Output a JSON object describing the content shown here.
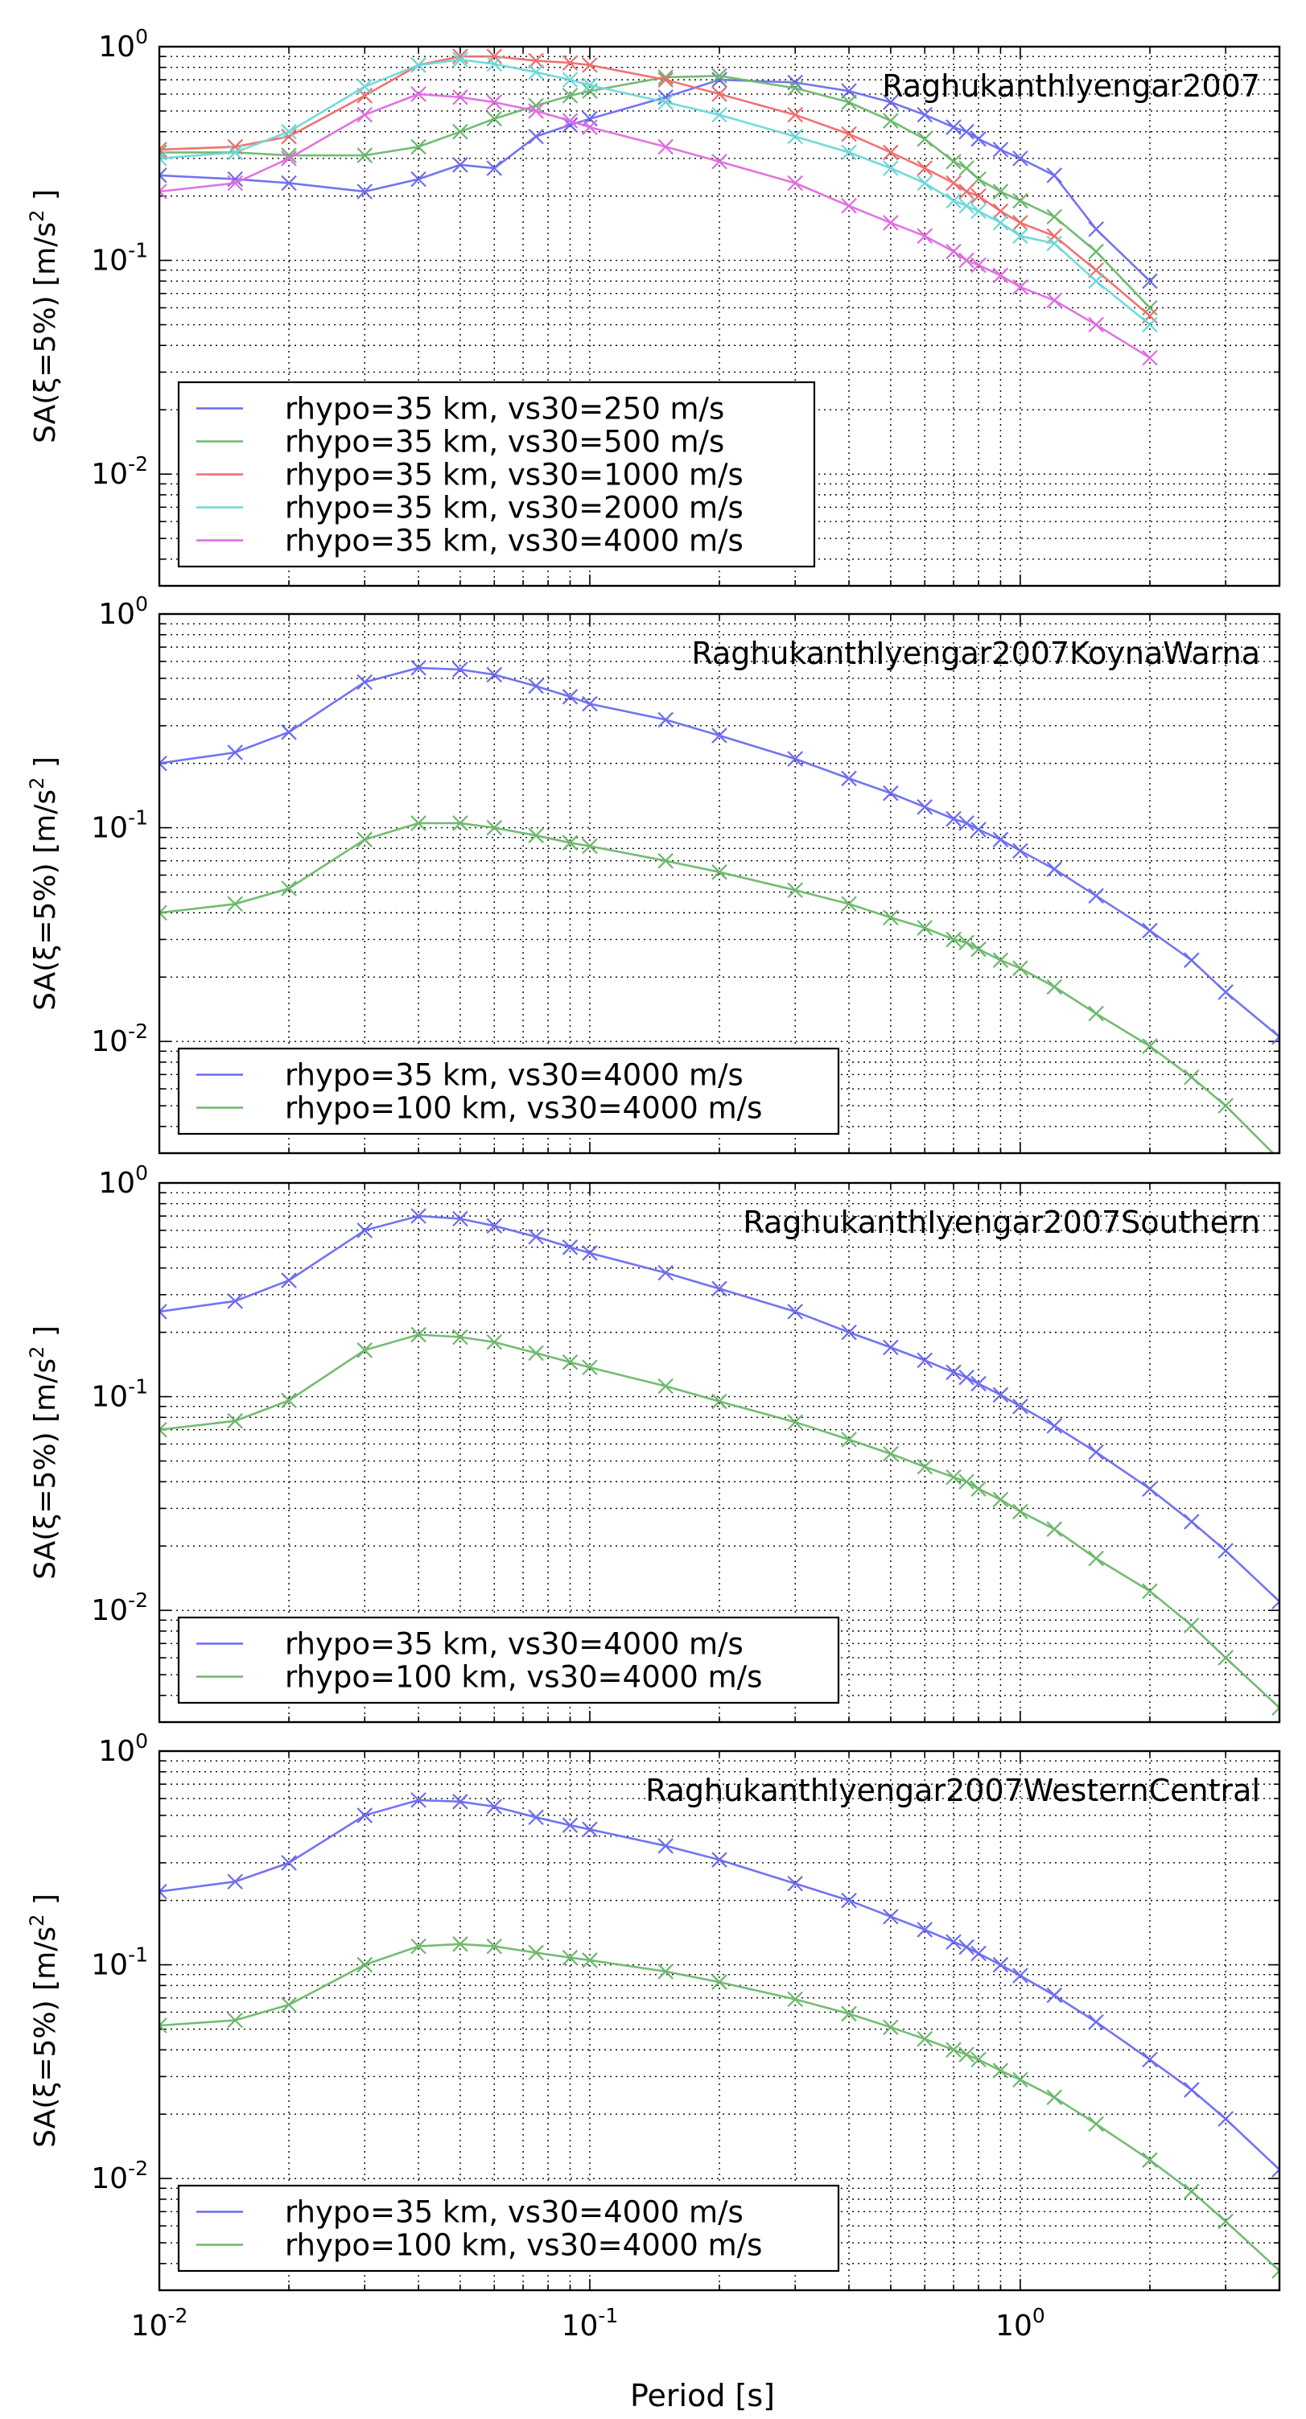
{
  "x_axis": {
    "label": "Period [s]",
    "ticks": [
      {
        "value": 0.01,
        "mant": "10",
        "exp": "-2"
      },
      {
        "value": 0.1,
        "mant": "10",
        "exp": "-1"
      },
      {
        "value": 1,
        "mant": "10",
        "exp": "0"
      }
    ]
  },
  "y_ticks": [
    {
      "value": 0.01,
      "mant": "10",
      "exp": "-2"
    },
    {
      "value": 0.1,
      "mant": "10",
      "exp": "-1"
    },
    {
      "value": 1,
      "mant": "10",
      "exp": "0"
    }
  ],
  "y_label": {
    "prefix": "SA(ξ=5%) [m/s",
    "sup": "2",
    "suffix": " ]"
  },
  "colors": {
    "blue": "#6b6bf0",
    "green": "#6bb86b",
    "red": "#f06b6b",
    "cyan": "#6bd8d8",
    "magenta": "#e06be0"
  },
  "chart_data": [
    {
      "type": "line",
      "title": "RaghukanthIyengar2007",
      "xscale": "log",
      "yscale": "log",
      "xlim": [
        0.01,
        4
      ],
      "ylim": [
        0.003,
        1
      ],
      "grid": true,
      "legend": "lower-left",
      "x": [
        0.01,
        0.015,
        0.02,
        0.03,
        0.04,
        0.05,
        0.06,
        0.075,
        0.09,
        0.1,
        0.15,
        0.2,
        0.3,
        0.4,
        0.5,
        0.6,
        0.7,
        0.75,
        0.8,
        0.9,
        1.0,
        1.2,
        1.5,
        2.0
      ],
      "series": [
        {
          "name": "rhypo=35 km, vs30=250 m/s",
          "color": "#6b6bf0",
          "values": [
            0.25,
            0.24,
            0.23,
            0.21,
            0.24,
            0.28,
            0.27,
            0.38,
            0.43,
            0.46,
            0.58,
            0.7,
            0.68,
            0.62,
            0.55,
            0.48,
            0.42,
            0.4,
            0.37,
            0.33,
            0.3,
            0.25,
            0.14,
            0.08
          ]
        },
        {
          "name": "rhypo=35 km, vs30=500 m/s",
          "color": "#6bb86b",
          "values": [
            0.32,
            0.32,
            0.31,
            0.31,
            0.34,
            0.4,
            0.46,
            0.53,
            0.59,
            0.62,
            0.72,
            0.73,
            0.64,
            0.55,
            0.45,
            0.37,
            0.29,
            0.27,
            0.24,
            0.21,
            0.19,
            0.16,
            0.11,
            0.06
          ]
        },
        {
          "name": "rhypo=35 km, vs30=1000 m/s",
          "color": "#f06b6b",
          "values": [
            0.33,
            0.34,
            0.38,
            0.59,
            0.82,
            0.9,
            0.9,
            0.86,
            0.84,
            0.82,
            0.7,
            0.6,
            0.48,
            0.39,
            0.32,
            0.27,
            0.23,
            0.21,
            0.2,
            0.17,
            0.15,
            0.13,
            0.09,
            0.055
          ]
        },
        {
          "name": "rhypo=35 km, vs30=2000 m/s",
          "color": "#6bd8d8",
          "values": [
            0.3,
            0.32,
            0.4,
            0.65,
            0.82,
            0.87,
            0.83,
            0.76,
            0.7,
            0.66,
            0.55,
            0.48,
            0.38,
            0.32,
            0.27,
            0.23,
            0.19,
            0.18,
            0.17,
            0.15,
            0.13,
            0.12,
            0.08,
            0.05
          ]
        },
        {
          "name": "rhypo=35 km, vs30=4000 m/s",
          "color": "#e06be0",
          "values": [
            0.21,
            0.23,
            0.3,
            0.48,
            0.6,
            0.58,
            0.55,
            0.5,
            0.45,
            0.42,
            0.34,
            0.29,
            0.23,
            0.18,
            0.15,
            0.13,
            0.11,
            0.1,
            0.095,
            0.085,
            0.075,
            0.065,
            0.05,
            0.035
          ]
        }
      ]
    },
    {
      "type": "line",
      "title": "RaghukanthIyengar2007KoynaWarna",
      "xscale": "log",
      "yscale": "log",
      "xlim": [
        0.01,
        4
      ],
      "ylim": [
        0.003,
        1
      ],
      "grid": true,
      "legend": "lower-left",
      "x": [
        0.01,
        0.015,
        0.02,
        0.03,
        0.04,
        0.05,
        0.06,
        0.075,
        0.09,
        0.1,
        0.15,
        0.2,
        0.3,
        0.4,
        0.5,
        0.6,
        0.7,
        0.75,
        0.8,
        0.9,
        1.0,
        1.2,
        1.5,
        2.0,
        2.5,
        3.0,
        4.0
      ],
      "series": [
        {
          "name": "rhypo=35 km, vs30=4000 m/s",
          "color": "#6b6bf0",
          "values": [
            0.2,
            0.225,
            0.28,
            0.48,
            0.56,
            0.55,
            0.52,
            0.46,
            0.41,
            0.38,
            0.32,
            0.27,
            0.21,
            0.17,
            0.145,
            0.125,
            0.11,
            0.105,
            0.098,
            0.088,
            0.078,
            0.064,
            0.048,
            0.033,
            0.024,
            0.017,
            0.0105
          ]
        },
        {
          "name": "rhypo=100 km, vs30=4000 m/s",
          "color": "#6bb86b",
          "values": [
            0.04,
            0.044,
            0.052,
            0.088,
            0.105,
            0.105,
            0.1,
            0.092,
            0.085,
            0.082,
            0.07,
            0.062,
            0.051,
            0.044,
            0.038,
            0.034,
            0.03,
            0.029,
            0.027,
            0.024,
            0.022,
            0.018,
            0.0135,
            0.0095,
            0.0068,
            0.005,
            0.0028
          ]
        }
      ]
    },
    {
      "type": "line",
      "title": "RaghukanthIyengar2007Southern",
      "xscale": "log",
      "yscale": "log",
      "xlim": [
        0.01,
        4
      ],
      "ylim": [
        0.003,
        1
      ],
      "grid": true,
      "legend": "lower-left",
      "x": [
        0.01,
        0.015,
        0.02,
        0.03,
        0.04,
        0.05,
        0.06,
        0.075,
        0.09,
        0.1,
        0.15,
        0.2,
        0.3,
        0.4,
        0.5,
        0.6,
        0.7,
        0.75,
        0.8,
        0.9,
        1.0,
        1.2,
        1.5,
        2.0,
        2.5,
        3.0,
        4.0
      ],
      "series": [
        {
          "name": "rhypo=35 km, vs30=4000 m/s",
          "color": "#6b6bf0",
          "values": [
            0.25,
            0.28,
            0.35,
            0.6,
            0.7,
            0.68,
            0.63,
            0.56,
            0.5,
            0.47,
            0.38,
            0.32,
            0.25,
            0.2,
            0.17,
            0.148,
            0.13,
            0.123,
            0.115,
            0.102,
            0.09,
            0.073,
            0.055,
            0.037,
            0.026,
            0.019,
            0.011
          ]
        },
        {
          "name": "rhypo=100 km, vs30=4000 m/s",
          "color": "#6bb86b",
          "values": [
            0.07,
            0.077,
            0.096,
            0.165,
            0.195,
            0.19,
            0.18,
            0.16,
            0.145,
            0.137,
            0.112,
            0.095,
            0.076,
            0.063,
            0.054,
            0.047,
            0.042,
            0.04,
            0.037,
            0.033,
            0.029,
            0.024,
            0.0175,
            0.0123,
            0.0085,
            0.006,
            0.0035
          ]
        }
      ]
    },
    {
      "type": "line",
      "title": "RaghukanthIyengar2007WesternCentral",
      "xscale": "log",
      "yscale": "log",
      "xlim": [
        0.01,
        4
      ],
      "ylim": [
        0.003,
        1
      ],
      "grid": true,
      "legend": "lower-left",
      "x": [
        0.01,
        0.015,
        0.02,
        0.03,
        0.04,
        0.05,
        0.06,
        0.075,
        0.09,
        0.1,
        0.15,
        0.2,
        0.3,
        0.4,
        0.5,
        0.6,
        0.7,
        0.75,
        0.8,
        0.9,
        1.0,
        1.2,
        1.5,
        2.0,
        2.5,
        3.0,
        4.0
      ],
      "series": [
        {
          "name": "rhypo=35 km, vs30=4000 m/s",
          "color": "#6b6bf0",
          "values": [
            0.22,
            0.245,
            0.3,
            0.5,
            0.59,
            0.58,
            0.55,
            0.49,
            0.45,
            0.43,
            0.36,
            0.31,
            0.24,
            0.2,
            0.168,
            0.146,
            0.128,
            0.121,
            0.113,
            0.1,
            0.089,
            0.072,
            0.054,
            0.036,
            0.026,
            0.019,
            0.011
          ]
        },
        {
          "name": "rhypo=100 km, vs30=4000 m/s",
          "color": "#6bb86b",
          "values": [
            0.052,
            0.055,
            0.065,
            0.1,
            0.122,
            0.125,
            0.122,
            0.114,
            0.108,
            0.105,
            0.093,
            0.083,
            0.069,
            0.059,
            0.051,
            0.045,
            0.04,
            0.038,
            0.036,
            0.032,
            0.029,
            0.024,
            0.018,
            0.0122,
            0.0087,
            0.0063,
            0.0037
          ]
        }
      ]
    }
  ]
}
